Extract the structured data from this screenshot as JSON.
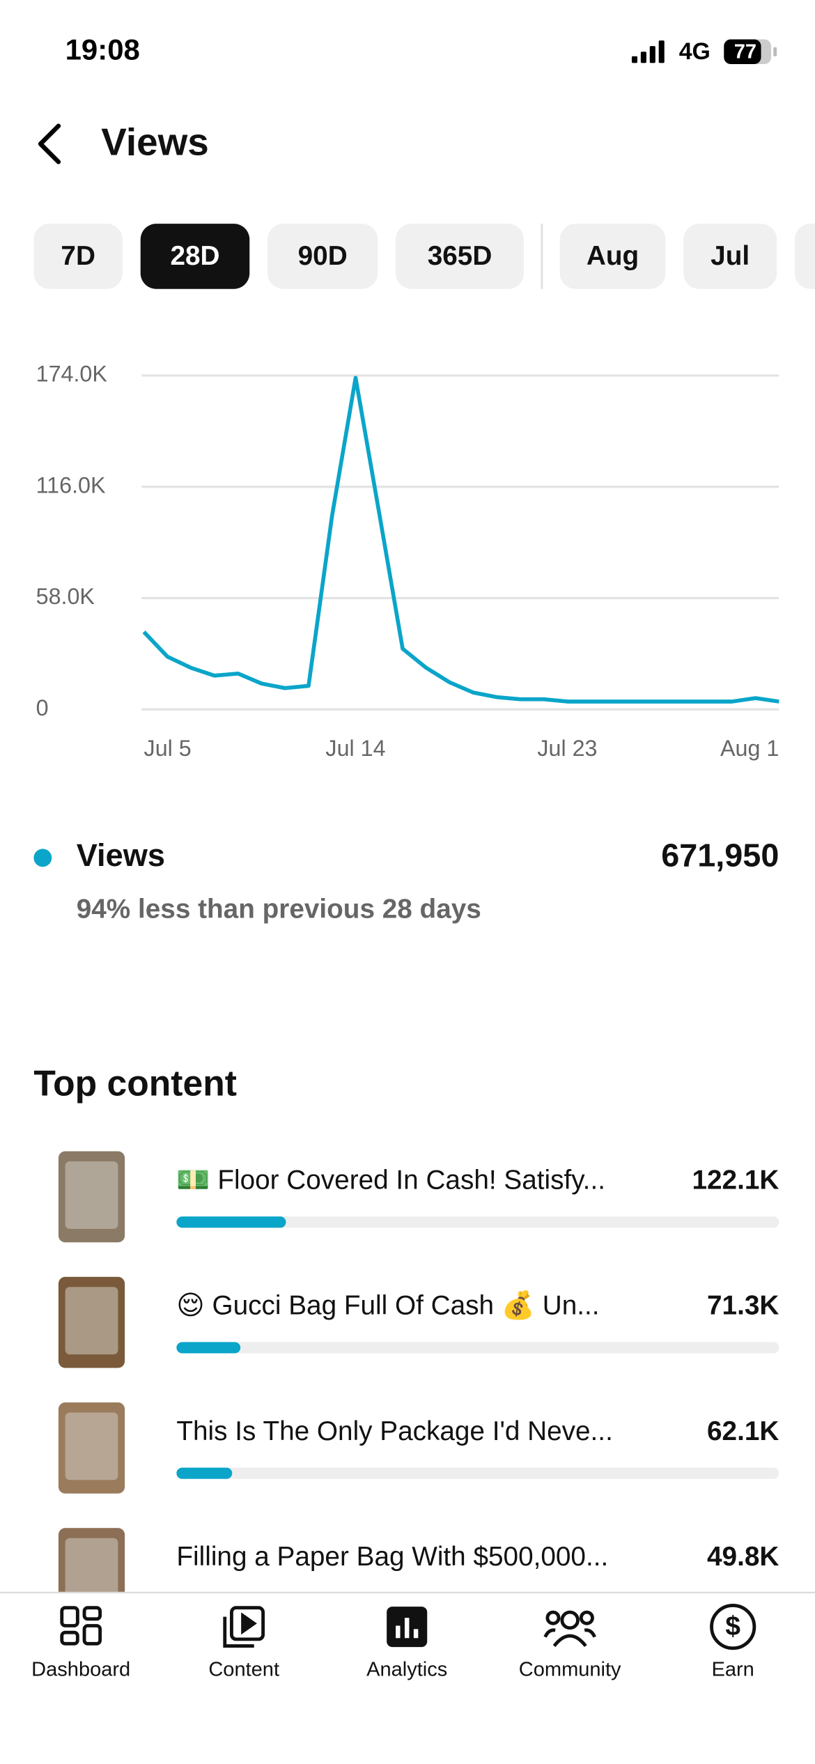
{
  "status_bar": {
    "time": "19:08",
    "network": "4G",
    "battery": "77"
  },
  "header": {
    "title": "Views"
  },
  "tabs": {
    "items": [
      "7D",
      "28D",
      "90D",
      "365D",
      "Aug",
      "Jul"
    ],
    "selected": "28D"
  },
  "chart_data": {
    "type": "line",
    "categories": [
      "Jul 5",
      null,
      null,
      null,
      null,
      null,
      null,
      null,
      null,
      "Jul 14",
      null,
      null,
      null,
      null,
      null,
      null,
      null,
      null,
      "Jul 23",
      null,
      null,
      null,
      null,
      null,
      null,
      null,
      null,
      "Aug 1"
    ],
    "series": [
      {
        "name": "Views",
        "color": "#0aa5c9",
        "values": [
          40400,
          27500,
          21700,
          17600,
          18700,
          13500,
          11100,
          12300,
          101000,
          172800,
          102500,
          31600,
          21700,
          14100,
          8800,
          6400,
          5300,
          5300,
          4100,
          4100,
          4100,
          4100,
          4100,
          4100,
          4100,
          4100,
          5900,
          4100
        ]
      }
    ],
    "ylim": [
      0,
      174000
    ],
    "yticks": [
      0,
      {
        "value": 58000,
        "label": "58.0K"
      },
      {
        "value": 116000,
        "label": "116.0K"
      },
      {
        "value": 174000,
        "label": "174.0K"
      }
    ],
    "grid": true
  },
  "summary": {
    "label": "Views",
    "total": "671,950",
    "comparison": "94% less than previous 28 days"
  },
  "top_content": {
    "title": "Top content",
    "items": [
      {
        "title": "💵 Floor Covered In Cash! Satisfy...",
        "value": 122100,
        "value_label": "122.1K"
      },
      {
        "title": "😌 Gucci Bag Full Of Cash 💰 Un...",
        "value": 71300,
        "value_label": "71.3K"
      },
      {
        "title": "This Is The Only Package I'd Neve...",
        "value": 62100,
        "value_label": "62.1K"
      },
      {
        "title": "Filling a Paper Bag With $500,000...",
        "value": 49800,
        "value_label": "49.8K"
      }
    ]
  },
  "nav": {
    "items": [
      "Dashboard",
      "Content",
      "Analytics",
      "Community",
      "Earn"
    ]
  }
}
